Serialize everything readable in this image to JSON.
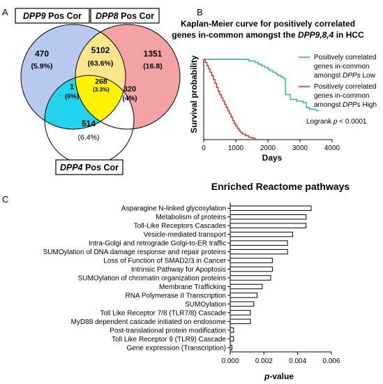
{
  "panels": {
    "a": "A",
    "b": "B",
    "c": "C"
  },
  "venn": {
    "labels": {
      "dpp9_italic": "DPP9",
      "dpp9_rest": " Pos Cor",
      "dpp8_italic": "DPP8",
      "dpp8_rest": " Pos Cor",
      "dpp4_italic": "DPP4",
      "dpp4_rest": " Pos Cor"
    },
    "regions": {
      "dpp9_only": {
        "count": "470",
        "pct": "(5.9%)"
      },
      "dpp9_dpp8": {
        "count": "5102",
        "pct": "(63.6%)"
      },
      "dpp8_only": {
        "count": "1351",
        "pct": "(16.8)"
      },
      "all_three": {
        "count": "268",
        "pct": "(3.3%)"
      },
      "dpp9_dpp4": {
        "count": "1",
        "pct": "(0%)"
      },
      "dpp8_dpp4": {
        "count": "320",
        "pct": "(4%)"
      },
      "dpp4_only": {
        "count": "514",
        "pct": "(6.4%)"
      }
    },
    "colors": {
      "dpp9": "#b7c9ee",
      "dpp8": "#f4a3a5",
      "dpp4": "#ffffff",
      "dpp9_dpp8": "#fde68a",
      "dpp9_dpp4": "#22d3ee",
      "all_three": "#fff200"
    }
  },
  "km": {
    "title1": "Kaplan-Meier curve for positively correlated",
    "title2_pre": "genes in-common amongst the ",
    "title2_it": "DPP9,8,4",
    "title2_post": " in HCC",
    "legend_low": {
      "line1": "Positively correlated",
      "line2": "genes in-common",
      "line3_pre": "amongst ",
      "line3_it": "DPPs",
      "line3_post": " Low"
    },
    "legend_high": {
      "line1": "Positively correlated",
      "line2": "genes in-common",
      "line3_pre": "amongst ",
      "line3_it": "DPPs",
      "line3_post": " High"
    },
    "logrank_pre": "Logrank ",
    "logrank_it": "p",
    "logrank_post": " < 0.0001",
    "colors": {
      "low": "#22c55e",
      "high": "#e0261d"
    }
  },
  "reactome": {
    "title": "Enriched Reactome pathways"
  },
  "chart_data": [
    {
      "type": "line",
      "xlabel": "Days",
      "ylabel": "Survival probability",
      "xlim": [
        0,
        4000
      ],
      "ylim": [
        0,
        1
      ],
      "xticks": [
        "0",
        "1000",
        "2000",
        "3000",
        "4000"
      ],
      "series": [
        {
          "name": "Positively correlated genes in-common amongst DPPs Low",
          "x": [
            0,
            1400,
            1400,
            1600,
            1600,
            1700,
            1700,
            1800,
            1800,
            1900,
            1900,
            2000,
            2000,
            2050,
            2050,
            2150,
            2150,
            2250,
            2250,
            2300,
            2300,
            2400,
            2400,
            2480,
            2480,
            2550,
            2550,
            2700,
            2700,
            2900,
            2900,
            3100,
            3100,
            3200,
            3200,
            3300,
            3300,
            3500,
            3500,
            3600
          ],
          "y": [
            1.0,
            1.0,
            0.98,
            0.98,
            0.96,
            0.96,
            0.94,
            0.94,
            0.92,
            0.92,
            0.9,
            0.9,
            0.88,
            0.88,
            0.86,
            0.86,
            0.84,
            0.84,
            0.82,
            0.82,
            0.8,
            0.8,
            0.78,
            0.78,
            0.76,
            0.76,
            0.56,
            0.56,
            0.5,
            0.5,
            0.48,
            0.48,
            0.46,
            0.46,
            0.4,
            0.4,
            0.38,
            0.38,
            0.36,
            0.36
          ]
        },
        {
          "name": "Positively correlated genes in-common amongst DPPs High",
          "x": [
            0,
            50,
            50,
            100,
            100,
            150,
            150,
            200,
            200,
            250,
            250,
            300,
            300,
            350,
            350,
            400,
            400,
            450,
            450,
            500,
            500,
            550,
            550,
            600,
            600,
            650,
            650,
            700,
            700,
            750,
            750,
            800,
            800,
            850,
            850,
            900,
            900,
            950,
            950,
            1000,
            1000,
            1050,
            1050,
            1100,
            1100,
            1150,
            1150,
            1200,
            1200,
            1300,
            1300,
            1400,
            1400,
            1500,
            1500,
            1600,
            1600,
            1700
          ],
          "y": [
            1.0,
            1.0,
            0.96,
            0.96,
            0.92,
            0.92,
            0.88,
            0.88,
            0.84,
            0.84,
            0.8,
            0.8,
            0.75,
            0.75,
            0.7,
            0.7,
            0.65,
            0.65,
            0.6,
            0.6,
            0.56,
            0.56,
            0.52,
            0.52,
            0.48,
            0.48,
            0.44,
            0.44,
            0.4,
            0.4,
            0.36,
            0.36,
            0.32,
            0.32,
            0.28,
            0.28,
            0.24,
            0.24,
            0.2,
            0.2,
            0.17,
            0.17,
            0.14,
            0.14,
            0.11,
            0.11,
            0.09,
            0.09,
            0.07,
            0.07,
            0.05,
            0.05,
            0.03,
            0.03,
            0.02,
            0.02,
            0.0,
            0.0
          ]
        }
      ]
    },
    {
      "type": "bar",
      "orientation": "horizontal",
      "title": "Enriched Reactome pathways",
      "xlabel": "p-value",
      "xlim": [
        0,
        0.006
      ],
      "xticks": [
        "0.000",
        "0.002",
        "0.004",
        "0.006"
      ],
      "categories": [
        "Asparagine N-linked glycosylation",
        "Metabolism of proteins",
        "Toll-Like Receptors Cascades",
        "Vesicle-mediated transport",
        "Intra-Golgi and retrograde Golgi-to-ER traffic",
        "SUMOylation of DNA damage response and repair proteins",
        "Loss of Function of SMAD2/3 in Cancer",
        "Intrinsic Pathway for Apoptosis",
        "SUMOylation of chromatin organization proteins",
        "Membrane Trafficking",
        "RNA Polymerase II Transcription",
        "SUMOylation",
        "Toll Like Receptor 7/8 (TLR7/8) Cascade",
        "MyD88 dependent cascade initiated on endosome",
        "Post-translational protein modification",
        "Toll Like Receptor 9 (TLR9) Cascade",
        "Gene expression (Transcription)"
      ],
      "values": [
        0.0048,
        0.0045,
        0.0045,
        0.0037,
        0.0034,
        0.0034,
        0.0025,
        0.0025,
        0.0024,
        0.0019,
        0.0016,
        0.0014,
        0.0012,
        0.0012,
        0.0002,
        0.0002,
        0.0001
      ]
    }
  ]
}
